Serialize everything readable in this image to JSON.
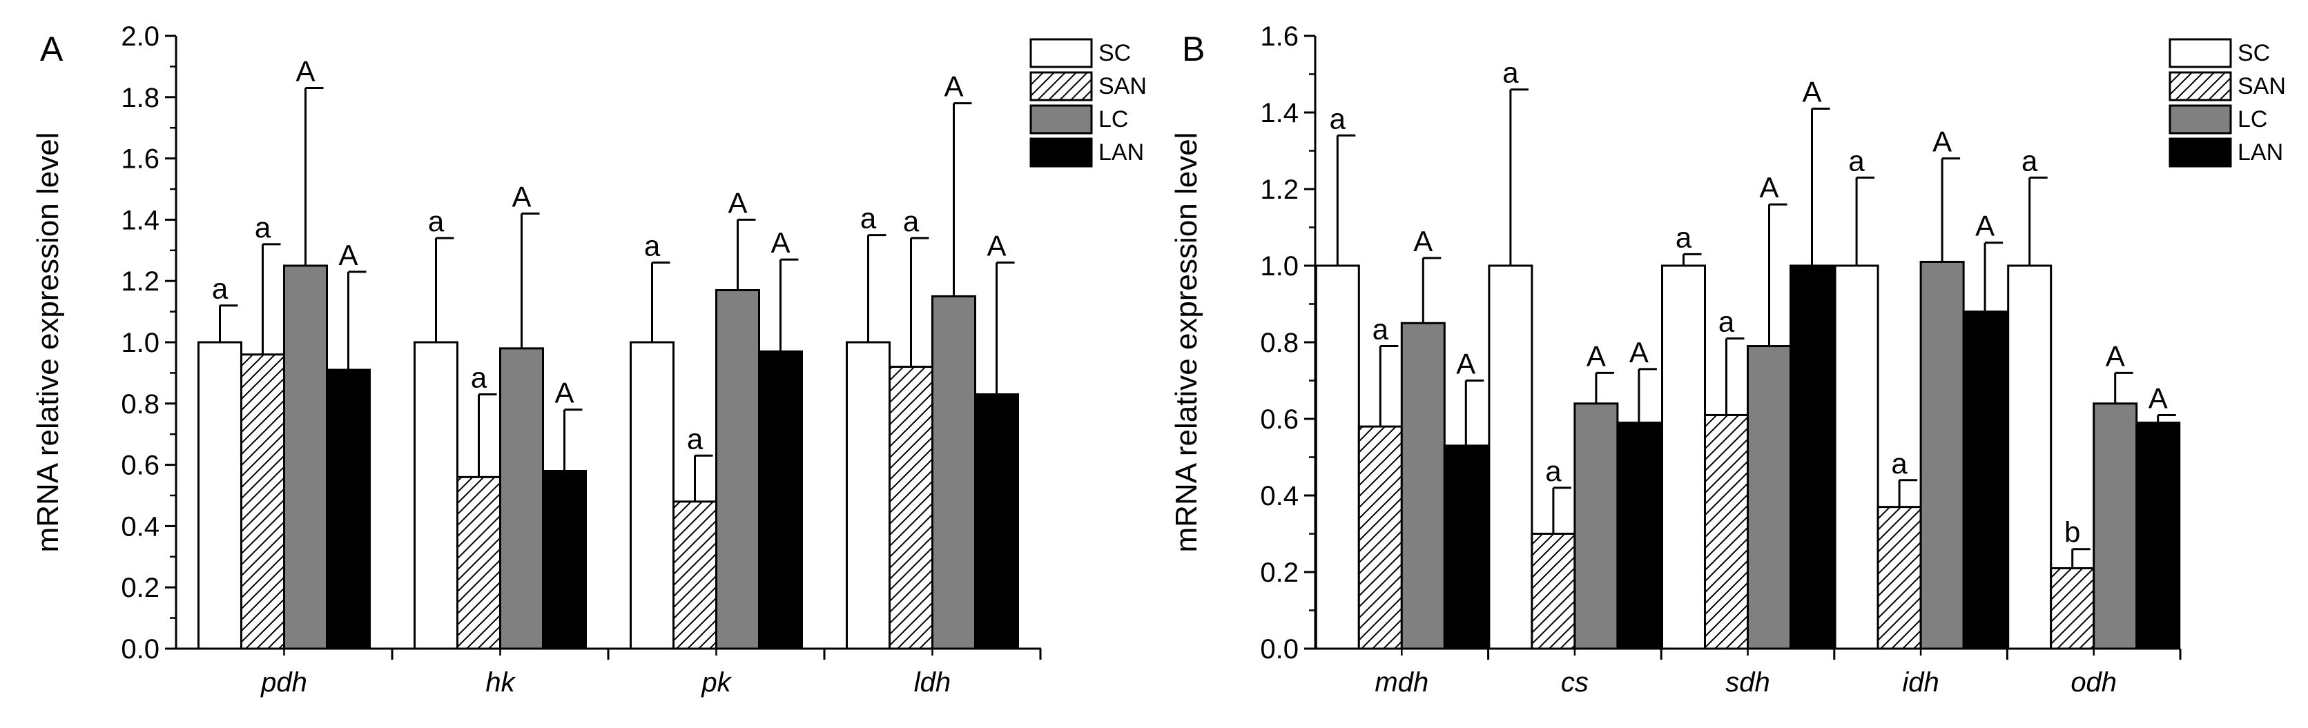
{
  "chart_data": [
    {
      "type": "bar",
      "panel_label": "A",
      "ylabel": "mRNA relative expression level",
      "ylim": [
        0,
        2.0
      ],
      "yticks": [
        "0.0",
        "0.2",
        "0.4",
        "0.6",
        "0.8",
        "1.0",
        "1.2",
        "1.4",
        "1.6",
        "1.8",
        "2.0"
      ],
      "categories": [
        "pdh",
        "hk",
        "pk",
        "ldh"
      ],
      "legend": "top-right",
      "series": [
        {
          "name": "SC",
          "style": "white",
          "values": [
            1.0,
            1.0,
            1.0,
            1.0
          ],
          "errors": [
            0.12,
            0.34,
            0.26,
            0.35
          ],
          "labels": [
            "a",
            "a",
            "a",
            "a"
          ]
        },
        {
          "name": "SAN",
          "style": "hatched",
          "values": [
            0.96,
            0.56,
            0.48,
            0.92
          ],
          "errors": [
            0.36,
            0.27,
            0.15,
            0.42
          ],
          "labels": [
            "a",
            "a",
            "a",
            "a"
          ]
        },
        {
          "name": "LC",
          "style": "gray",
          "values": [
            1.25,
            0.98,
            1.17,
            1.15
          ],
          "errors": [
            0.58,
            0.44,
            0.23,
            0.63
          ],
          "labels": [
            "A",
            "A",
            "A",
            "A"
          ]
        },
        {
          "name": "LAN",
          "style": "black",
          "values": [
            0.91,
            0.58,
            0.97,
            0.83
          ],
          "errors": [
            0.32,
            0.2,
            0.3,
            0.43
          ],
          "labels": [
            "A",
            "A",
            "A",
            "A"
          ]
        }
      ]
    },
    {
      "type": "bar",
      "panel_label": "B",
      "ylabel": "mRNA relative expression level",
      "ylim": [
        0,
        1.6
      ],
      "yticks": [
        "0.0",
        "0.2",
        "0.4",
        "0.6",
        "0.8",
        "1.0",
        "1.2",
        "1.4",
        "1.6"
      ],
      "categories": [
        "mdh",
        "cs",
        "sdh",
        "idh",
        "odh"
      ],
      "legend": "top-right",
      "series": [
        {
          "name": "SC",
          "style": "white",
          "values": [
            1.0,
            1.0,
            1.0,
            1.0,
            1.0
          ],
          "errors": [
            0.34,
            0.46,
            0.03,
            0.23,
            0.23
          ],
          "labels": [
            "a",
            "a",
            "a",
            "a",
            "a"
          ]
        },
        {
          "name": "SAN",
          "style": "hatched",
          "values": [
            0.58,
            0.3,
            0.61,
            0.37,
            0.21
          ],
          "errors": [
            0.21,
            0.12,
            0.2,
            0.07,
            0.05
          ],
          "labels": [
            "a",
            "a",
            "a",
            "a",
            "b"
          ]
        },
        {
          "name": "LC",
          "style": "gray",
          "values": [
            0.85,
            0.64,
            0.79,
            1.01,
            0.64
          ],
          "errors": [
            0.17,
            0.08,
            0.37,
            0.27,
            0.08
          ],
          "labels": [
            "A",
            "A",
            "A",
            "A",
            "A"
          ]
        },
        {
          "name": "LAN",
          "style": "black",
          "values": [
            0.53,
            0.59,
            1.0,
            0.88,
            0.59
          ],
          "errors": [
            0.17,
            0.14,
            0.41,
            0.18,
            0.02
          ],
          "labels": [
            "A",
            "A",
            "A",
            "A",
            "A"
          ]
        }
      ]
    }
  ]
}
